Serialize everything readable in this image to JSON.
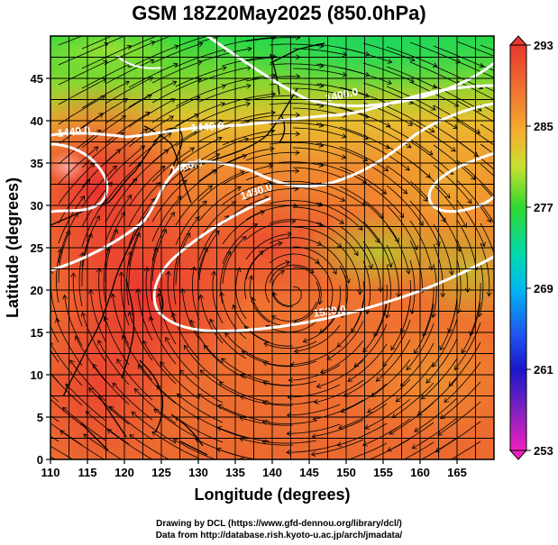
{
  "title": "GSM 18Z20May2025 (850.0hPa)",
  "credits": {
    "line1": "Drawing by DCL (https://www.gfd-dennou.org/library/dcl/)",
    "line2": "Data from http://database.rish.kyoto-u.ac.jp/arch/jmadata/"
  },
  "map": {
    "region": "Western North Pacific",
    "field": "temperature shading with streamlines and geopotential height contours",
    "xaxis": {
      "label": "Longitude (degrees)",
      "range": [
        110,
        170
      ],
      "ticks": [
        "110",
        "115",
        "120",
        "125",
        "130",
        "135",
        "140",
        "145",
        "150",
        "155",
        "160",
        "165"
      ]
    },
    "yaxis": {
      "label": "Latitude  (degrees)",
      "range": [
        0,
        50
      ],
      "ticks": [
        "0",
        "5",
        "10",
        "15",
        "20",
        "25",
        "30",
        "35",
        "40",
        "45"
      ]
    },
    "contour_labels": [
      "1400.0",
      "1440.0",
      "1440.0",
      "1480.0",
      "1480.0",
      "1520.0"
    ],
    "colors": {
      "hot": "#e8382e",
      "warm": "#f07830",
      "mid": "#f5b030",
      "green": "#30d830",
      "cool": "#00c8e0"
    }
  },
  "colorbar": {
    "ticks": [
      "293",
      "285",
      "277",
      "269",
      "261",
      "253"
    ],
    "min": 253,
    "max": 293
  }
}
